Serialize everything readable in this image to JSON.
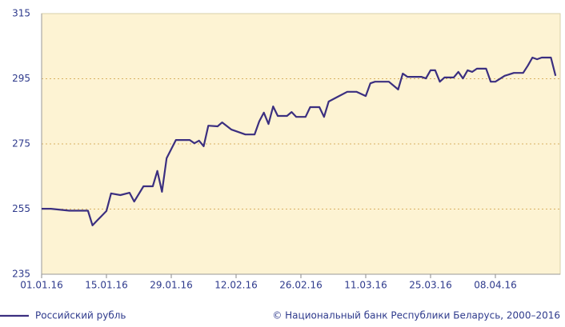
{
  "chart_data": {
    "type": "line",
    "x": [
      "01.01.16",
      "03.01.16",
      "07.01.16",
      "11.01.16",
      "12.01.16",
      "13.01.16",
      "15.01.16",
      "16.01.16",
      "18.01.16",
      "20.01.16",
      "21.01.16",
      "23.01.16",
      "25.01.16",
      "26.01.16",
      "27.01.16",
      "28.01.16",
      "30.01.16",
      "02.02.16",
      "03.02.16",
      "04.02.16",
      "05.02.16",
      "06.02.16",
      "08.02.16",
      "09.02.16",
      "11.02.16",
      "14.02.16",
      "16.02.16",
      "17.02.16",
      "18.02.16",
      "19.02.16",
      "20.02.16",
      "21.02.16",
      "23.02.16",
      "24.02.16",
      "25.02.16",
      "27.02.16",
      "28.02.16",
      "01.03.16",
      "02.03.16",
      "03.03.16",
      "05.03.16",
      "07.03.16",
      "09.03.16",
      "11.03.16",
      "12.03.16",
      "13.03.16",
      "16.03.16",
      "18.03.16",
      "19.03.16",
      "20.03.16",
      "23.03.16",
      "24.03.16",
      "25.03.16",
      "26.03.16",
      "27.03.16",
      "28.03.16",
      "30.03.16",
      "31.03.16",
      "01.04.16",
      "02.04.16",
      "03.04.16",
      "04.04.16",
      "06.04.16",
      "07.04.16",
      "08.04.16",
      "10.04.16",
      "12.04.16",
      "14.04.16",
      "15.04.16",
      "16.04.16",
      "17.04.16",
      "18.04.16",
      "20.04.16",
      "21.04.16"
    ],
    "series": [
      {
        "name": "Российский рубль",
        "color": "#3b2f80",
        "values": [
          255.1,
          255.1,
          254.5,
          254.5,
          250.0,
          251.5,
          254.4,
          259.8,
          259.3,
          260.0,
          257.3,
          262.0,
          262.0,
          266.7,
          260.3,
          270.6,
          276.2,
          276.2,
          275.2,
          276.0,
          274.3,
          280.6,
          280.4,
          281.6,
          279.4,
          277.9,
          277.9,
          281.9,
          284.6,
          281.1,
          286.5,
          283.6,
          283.6,
          284.8,
          283.3,
          283.3,
          286.3,
          286.3,
          283.3,
          288.0,
          289.5,
          291.0,
          291.0,
          289.7,
          293.6,
          294.1,
          294.1,
          291.7,
          296.6,
          295.6,
          295.6,
          295.1,
          297.6,
          297.6,
          294.1,
          295.4,
          295.4,
          297.1,
          295.1,
          297.6,
          297.1,
          298.1,
          298.1,
          294.1,
          294.1,
          295.9,
          296.8,
          296.8,
          299.0,
          301.5,
          301.0,
          301.5,
          301.5,
          295.9
        ]
      }
    ],
    "xlim": [
      "01.01.16",
      "22.04.16"
    ],
    "xticks": [
      "01.01.16",
      "15.01.16",
      "29.01.16",
      "12.02.16",
      "26.02.16",
      "11.03.16",
      "25.03.16",
      "08.04.16"
    ],
    "ylim": [
      235,
      315
    ],
    "yticks": [
      235,
      255,
      275,
      295,
      315
    ],
    "grid": true,
    "source": "© Национальный банк Республики Беларусь, 2000–2016"
  }
}
